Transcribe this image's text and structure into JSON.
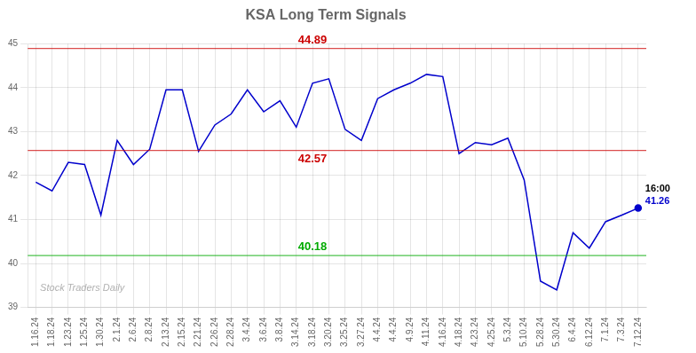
{
  "chart_data": {
    "type": "line",
    "title": "KSA Long Term Signals",
    "categories": [
      "1.16.24",
      "1.18.24",
      "1.23.24",
      "1.25.24",
      "1.30.24",
      "2.1.24",
      "2.6.24",
      "2.8.24",
      "2.13.24",
      "2.15.24",
      "2.21.24",
      "2.26.24",
      "2.28.24",
      "3.4.24",
      "3.6.24",
      "3.8.24",
      "3.14.24",
      "3.18.24",
      "3.20.24",
      "3.25.24",
      "3.27.24",
      "4.4.24",
      "4.4.24",
      "4.9.24",
      "4.11.24",
      "4.16.24",
      "4.18.24",
      "4.23.24",
      "4.25.24",
      "5.3.24",
      "5.10.24",
      "5.28.24",
      "5.30.24",
      "6.4.24",
      "6.12.24",
      "7.1.24",
      "7.3.24",
      "7.12.24"
    ],
    "values": [
      41.85,
      41.65,
      42.3,
      42.25,
      41.1,
      42.8,
      42.25,
      42.6,
      43.95,
      43.95,
      42.55,
      43.15,
      43.4,
      43.95,
      43.45,
      43.7,
      43.1,
      44.1,
      44.2,
      43.05,
      42.8,
      43.75,
      43.95,
      44.1,
      44.3,
      44.25,
      42.5,
      42.75,
      42.7,
      42.85,
      41.9,
      39.6,
      39.4,
      40.7,
      40.35,
      40.95,
      41.1,
      41.26
    ],
    "color": "#0000cc",
    "ylim": [
      39,
      45
    ],
    "yticks": [
      39,
      40,
      41,
      42,
      43,
      44,
      45
    ],
    "grid": true,
    "reference_lines": [
      {
        "value": 44.89,
        "label": "44.89",
        "color": "#cc0000"
      },
      {
        "value": 42.57,
        "label": "42.57",
        "color": "#cc0000"
      },
      {
        "value": 40.18,
        "label": "40.18",
        "color": "#00aa00"
      }
    ],
    "last_point": {
      "marker": "circle",
      "color": "#0000cc",
      "labels": [
        "16:00",
        "41.26"
      ]
    },
    "watermark": "Stock Traders Daily"
  }
}
